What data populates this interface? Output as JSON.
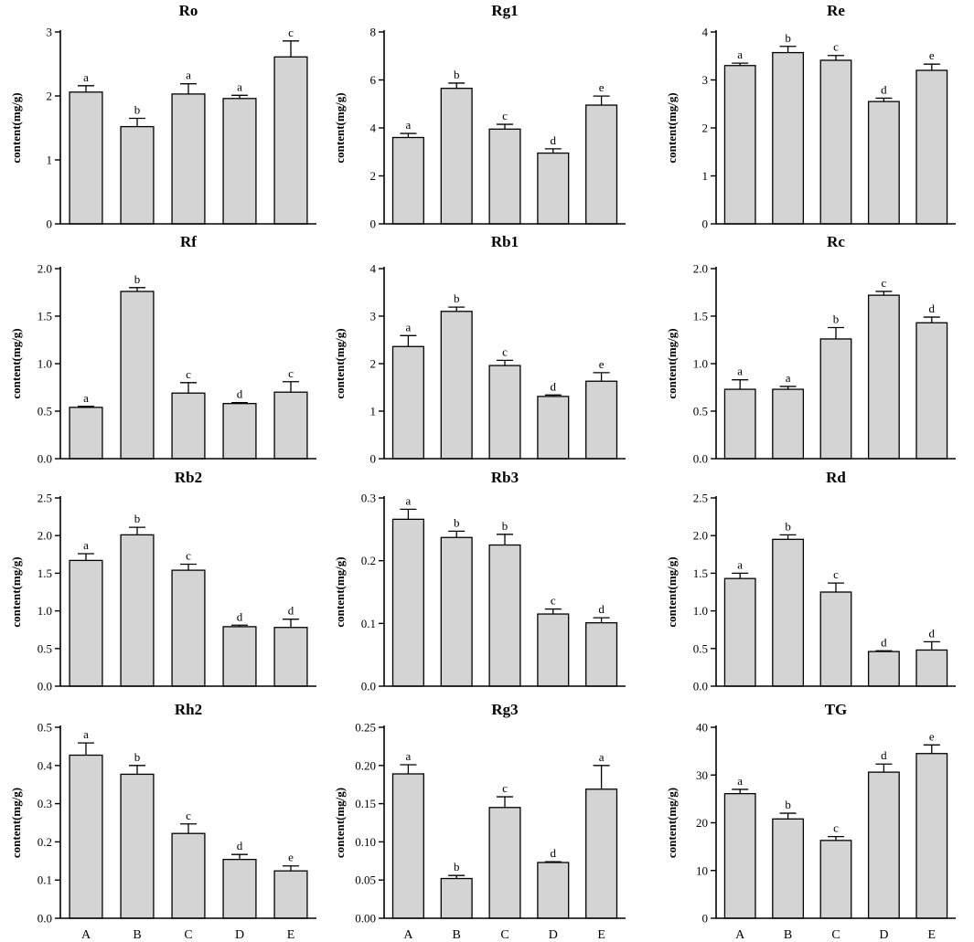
{
  "chart_data": [
    {
      "type": "bar",
      "title": "Ro",
      "ylabel": "content(mg/g)",
      "xlabel": "",
      "categories": [
        "A",
        "B",
        "C",
        "D",
        "E"
      ],
      "values": [
        2.06,
        1.52,
        2.03,
        1.96,
        2.61
      ],
      "errors": [
        0.1,
        0.13,
        0.16,
        0.05,
        0.25
      ],
      "letters": [
        "a",
        "b",
        "a",
        "a",
        "c"
      ],
      "ylim": [
        0,
        3
      ],
      "yticks": [
        "0",
        "1",
        "2",
        "3"
      ],
      "show_categories": false
    },
    {
      "type": "bar",
      "title": "Rg1",
      "ylabel": "content(mg/g)",
      "xlabel": "",
      "categories": [
        "A",
        "B",
        "C",
        "D",
        "E"
      ],
      "values": [
        3.6,
        5.65,
        3.95,
        2.95,
        4.95
      ],
      "errors": [
        0.17,
        0.22,
        0.2,
        0.18,
        0.38
      ],
      "letters": [
        "a",
        "b",
        "c",
        "d",
        "e"
      ],
      "ylim": [
        0,
        8
      ],
      "yticks": [
        "0",
        "2",
        "4",
        "6",
        "8"
      ],
      "show_categories": false
    },
    {
      "type": "bar",
      "title": "Re",
      "ylabel": "content(mg/g)",
      "xlabel": "",
      "categories": [
        "A",
        "B",
        "C",
        "D",
        "E"
      ],
      "values": [
        3.3,
        3.57,
        3.41,
        2.55,
        3.2
      ],
      "errors": [
        0.05,
        0.13,
        0.1,
        0.07,
        0.13
      ],
      "letters": [
        "a",
        "b",
        "c",
        "d",
        "e"
      ],
      "ylim": [
        0,
        4
      ],
      "yticks": [
        "0",
        "1",
        "2",
        "3",
        "4"
      ],
      "show_categories": false
    },
    {
      "type": "bar",
      "title": "Rf",
      "ylabel": "content(mg/g)",
      "xlabel": "",
      "categories": [
        "A",
        "B",
        "C",
        "D",
        "E"
      ],
      "values": [
        0.54,
        1.76,
        0.69,
        0.58,
        0.7
      ],
      "errors": [
        0.01,
        0.04,
        0.11,
        0.01,
        0.11
      ],
      "letters": [
        "a",
        "b",
        "c",
        "d",
        "c"
      ],
      "ylim": [
        0,
        2
      ],
      "yticks": [
        "0.0",
        "0.5",
        "1.0",
        "1.5",
        "2.0"
      ],
      "show_categories": false
    },
    {
      "type": "bar",
      "title": "Rb1",
      "ylabel": "content(mg/g)",
      "xlabel": "",
      "categories": [
        "A",
        "B",
        "C",
        "D",
        "E"
      ],
      "values": [
        2.36,
        3.1,
        1.96,
        1.31,
        1.63
      ],
      "errors": [
        0.23,
        0.09,
        0.11,
        0.03,
        0.18
      ],
      "letters": [
        "a",
        "b",
        "c",
        "d",
        "e"
      ],
      "ylim": [
        0,
        4
      ],
      "yticks": [
        "0",
        "1",
        "2",
        "3",
        "4"
      ],
      "show_categories": false
    },
    {
      "type": "bar",
      "title": "Rc",
      "ylabel": "content(mg/g)",
      "xlabel": "",
      "categories": [
        "A",
        "B",
        "C",
        "D",
        "E"
      ],
      "values": [
        0.73,
        0.73,
        1.26,
        1.72,
        1.43
      ],
      "errors": [
        0.1,
        0.03,
        0.12,
        0.04,
        0.06
      ],
      "letters": [
        "a",
        "a",
        "b",
        "c",
        "d"
      ],
      "ylim": [
        0,
        2
      ],
      "yticks": [
        "0.0",
        "0.5",
        "1.0",
        "1.5",
        "2.0"
      ],
      "show_categories": false
    },
    {
      "type": "bar",
      "title": "Rb2",
      "ylabel": "content(mg/g)",
      "xlabel": "",
      "categories": [
        "A",
        "B",
        "C",
        "D",
        "E"
      ],
      "values": [
        1.67,
        2.01,
        1.54,
        0.79,
        0.78
      ],
      "errors": [
        0.09,
        0.1,
        0.08,
        0.02,
        0.11
      ],
      "letters": [
        "a",
        "b",
        "c",
        "d",
        "d"
      ],
      "ylim": [
        0,
        2.5
      ],
      "yticks": [
        "0.0",
        "0.5",
        "1.0",
        "1.5",
        "2.0",
        "2.5"
      ],
      "show_categories": false
    },
    {
      "type": "bar",
      "title": "Rb3",
      "ylabel": "content(mg/g)",
      "xlabel": "",
      "categories": [
        "A",
        "B",
        "C",
        "D",
        "E"
      ],
      "values": [
        0.266,
        0.237,
        0.225,
        0.115,
        0.101
      ],
      "errors": [
        0.016,
        0.01,
        0.017,
        0.008,
        0.008
      ],
      "letters": [
        "a",
        "b",
        "b",
        "c",
        "d"
      ],
      "ylim": [
        0,
        0.3
      ],
      "yticks": [
        "0.0",
        "0.1",
        "0.2",
        "0.3"
      ],
      "show_categories": false
    },
    {
      "type": "bar",
      "title": "Rd",
      "ylabel": "content(mg/g)",
      "xlabel": "",
      "categories": [
        "A",
        "B",
        "C",
        "D",
        "E"
      ],
      "values": [
        1.43,
        1.95,
        1.25,
        0.46,
        0.48
      ],
      "errors": [
        0.07,
        0.06,
        0.12,
        0.01,
        0.11
      ],
      "letters": [
        "a",
        "b",
        "c",
        "d",
        "d"
      ],
      "ylim": [
        0,
        2.5
      ],
      "yticks": [
        "0.0",
        "0.5",
        "1.0",
        "1.5",
        "2.0",
        "2.5"
      ],
      "show_categories": false
    },
    {
      "type": "bar",
      "title": "Rh2",
      "ylabel": "content(mg/g)",
      "xlabel": "",
      "categories": [
        "A",
        "B",
        "C",
        "D",
        "E"
      ],
      "values": [
        0.427,
        0.377,
        0.222,
        0.154,
        0.124
      ],
      "errors": [
        0.032,
        0.023,
        0.025,
        0.013,
        0.013
      ],
      "letters": [
        "a",
        "b",
        "c",
        "d",
        "e"
      ],
      "ylim": [
        0,
        0.5
      ],
      "yticks": [
        "0.0",
        "0.1",
        "0.2",
        "0.3",
        "0.4",
        "0.5"
      ],
      "show_categories": true
    },
    {
      "type": "bar",
      "title": "Rg3",
      "ylabel": "content(mg/g)",
      "xlabel": "",
      "categories": [
        "A",
        "B",
        "C",
        "D",
        "E"
      ],
      "values": [
        0.189,
        0.052,
        0.145,
        0.073,
        0.169
      ],
      "errors": [
        0.012,
        0.004,
        0.014,
        0.001,
        0.031
      ],
      "letters": [
        "a",
        "b",
        "c",
        "d",
        "a"
      ],
      "ylim": [
        0,
        0.25
      ],
      "yticks": [
        "0.00",
        "0.05",
        "0.10",
        "0.15",
        "0.20",
        "0.25"
      ],
      "show_categories": true
    },
    {
      "type": "bar",
      "title": "TG",
      "ylabel": "content(mg/g)",
      "xlabel": "",
      "categories": [
        "A",
        "B",
        "C",
        "D",
        "E"
      ],
      "values": [
        26.1,
        20.8,
        16.3,
        30.6,
        34.5
      ],
      "errors": [
        0.9,
        1.2,
        0.8,
        1.7,
        1.8
      ],
      "letters": [
        "a",
        "b",
        "c",
        "d",
        "e"
      ],
      "ylim": [
        0,
        40
      ],
      "yticks": [
        "0",
        "10",
        "20",
        "30",
        "40"
      ],
      "show_categories": true
    }
  ]
}
